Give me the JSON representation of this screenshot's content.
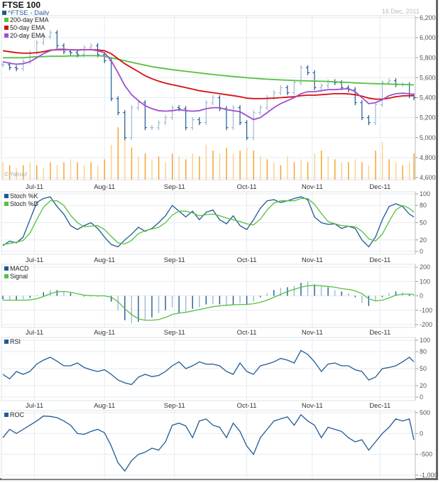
{
  "header": {
    "title": "FTSE 100",
    "subtitle": "^FTSE - Daily",
    "date": "16 Dec, 2011",
    "watermark": "© Yahoo!"
  },
  "colors": {
    "price_dark": "#1f5a96",
    "price_light": "#9fb9d4",
    "ema200": "#55c040",
    "ema50": "#d41010",
    "ema20": "#a050d0",
    "volume": "#f5a020",
    "volume_light": "#fbd08a",
    "line": "#1f5a96",
    "signal": "#55c040",
    "grid": "#e6ebf0"
  },
  "chart_data": {
    "type": "line",
    "xlim": [
      "2011-06-17",
      "2011-12-16"
    ],
    "month_ticks": [
      {
        "label": "Jul-11",
        "date": "2011-07-01"
      },
      {
        "label": "Aug-11",
        "date": "2011-08-01"
      },
      {
        "label": "Sep-11",
        "date": "2011-09-01"
      },
      {
        "label": "Oct-11",
        "date": "2011-10-03"
      },
      {
        "label": "Nov-11",
        "date": "2011-11-01"
      },
      {
        "label": "Dec-11",
        "date": "2011-12-01"
      }
    ],
    "dates": [
      "2011-06-17",
      "2011-06-20",
      "2011-06-23",
      "2011-06-26",
      "2011-06-29",
      "2011-07-02",
      "2011-07-05",
      "2011-07-08",
      "2011-07-11",
      "2011-07-14",
      "2011-07-17",
      "2011-07-20",
      "2011-07-23",
      "2011-07-26",
      "2011-07-29",
      "2011-08-01",
      "2011-08-04",
      "2011-08-07",
      "2011-08-10",
      "2011-08-13",
      "2011-08-16",
      "2011-08-19",
      "2011-08-22",
      "2011-08-25",
      "2011-08-28",
      "2011-08-31",
      "2011-09-03",
      "2011-09-06",
      "2011-09-09",
      "2011-09-12",
      "2011-09-15",
      "2011-09-18",
      "2011-09-21",
      "2011-09-24",
      "2011-09-27",
      "2011-09-30",
      "2011-10-03",
      "2011-10-06",
      "2011-10-09",
      "2011-10-12",
      "2011-10-15",
      "2011-10-18",
      "2011-10-21",
      "2011-10-24",
      "2011-10-27",
      "2011-10-30",
      "2011-11-02",
      "2011-11-05",
      "2011-11-08",
      "2011-11-11",
      "2011-11-14",
      "2011-11-17",
      "2011-11-20",
      "2011-11-23",
      "2011-11-26",
      "2011-11-29",
      "2011-12-02",
      "2011-12-05",
      "2011-12-08",
      "2011-12-11",
      "2011-12-14",
      "2011-12-16"
    ],
    "panels": {
      "price": {
        "type": "ohlc",
        "ylim": [
          4600,
          6200
        ],
        "ticks": [
          4600,
          4800,
          5000,
          5200,
          5400,
          5600,
          5800,
          6000,
          6200
        ],
        "tick_labels": [
          "4,600",
          "4,800",
          "5,000",
          "5,200",
          "5,400",
          "5,600",
          "5,800",
          "6,000",
          "6,200"
        ],
        "close": [
          5730,
          5700,
          5690,
          5760,
          5850,
          5950,
          6010,
          6050,
          5920,
          5860,
          5850,
          5830,
          5900,
          5920,
          5830,
          5770,
          5390,
          5250,
          5000,
          5300,
          5350,
          5100,
          5100,
          5150,
          5200,
          5300,
          5290,
          5100,
          5180,
          5150,
          5350,
          5400,
          5290,
          5100,
          5300,
          5150,
          5000,
          5250,
          5300,
          5400,
          5450,
          5500,
          5450,
          5550,
          5700,
          5650,
          5500,
          5520,
          5560,
          5550,
          5500,
          5480,
          5350,
          5200,
          5150,
          5330,
          5550,
          5570,
          5530,
          5530,
          5420,
          5400
        ],
        "volume_relative": [
          30,
          25,
          20,
          25,
          30,
          25,
          20,
          30,
          25,
          30,
          35,
          30,
          25,
          30,
          25,
          35,
          60,
          90,
          100,
          55,
          40,
          45,
          35,
          40,
          30,
          45,
          40,
          35,
          45,
          40,
          60,
          50,
          45,
          55,
          45,
          50,
          55,
          50,
          40,
          35,
          30,
          25,
          40,
          30,
          35,
          30,
          45,
          50,
          40,
          35,
          30,
          30,
          35,
          30,
          25,
          50,
          65,
          35,
          30,
          25,
          30,
          45
        ],
        "series": [
          {
            "name": "200-day EMA",
            "color_key": "ema200",
            "values": [
              5800,
              5800,
              5800,
              5800,
              5805,
              5810,
              5812,
              5815,
              5815,
              5815,
              5818,
              5818,
              5820,
              5820,
              5820,
              5815,
              5800,
              5785,
              5770,
              5755,
              5740,
              5725,
              5710,
              5700,
              5690,
              5680,
              5672,
              5664,
              5656,
              5648,
              5640,
              5632,
              5625,
              5618,
              5612,
              5606,
              5600,
              5595,
              5590,
              5585,
              5582,
              5578,
              5575,
              5572,
              5570,
              5568,
              5566,
              5564,
              5562,
              5558,
              5555,
              5552,
              5548,
              5545,
              5542,
              5540,
              5538,
              5536,
              5534,
              5532,
              5530,
              5528
            ]
          },
          {
            "name": "50-day EMA",
            "color_key": "ema50",
            "values": [
              5870,
              5860,
              5850,
              5845,
              5845,
              5850,
              5860,
              5875,
              5880,
              5880,
              5880,
              5878,
              5880,
              5880,
              5878,
              5870,
              5840,
              5790,
              5740,
              5700,
              5660,
              5620,
              5590,
              5565,
              5545,
              5530,
              5515,
              5500,
              5485,
              5470,
              5460,
              5450,
              5440,
              5430,
              5420,
              5410,
              5395,
              5390,
              5390,
              5392,
              5396,
              5400,
              5405,
              5410,
              5420,
              5425,
              5425,
              5430,
              5435,
              5440,
              5440,
              5438,
              5430,
              5415,
              5395,
              5385,
              5385,
              5395,
              5410,
              5418,
              5420,
              5420
            ]
          },
          {
            "name": "20-day EMA",
            "color_key": "ema20",
            "values": [
              5760,
              5745,
              5735,
              5740,
              5760,
              5800,
              5840,
              5870,
              5885,
              5885,
              5880,
              5875,
              5880,
              5880,
              5870,
              5850,
              5770,
              5650,
              5520,
              5430,
              5370,
              5320,
              5290,
              5270,
              5265,
              5270,
              5280,
              5270,
              5265,
              5270,
              5290,
              5300,
              5300,
              5280,
              5270,
              5260,
              5220,
              5180,
              5200,
              5250,
              5300,
              5340,
              5370,
              5400,
              5440,
              5460,
              5460,
              5470,
              5480,
              5480,
              5485,
              5490,
              5460,
              5400,
              5340,
              5350,
              5380,
              5420,
              5440,
              5445,
              5440,
              5430
            ]
          }
        ]
      },
      "stoch": {
        "ylim": [
          0,
          100
        ],
        "ticks": [
          0,
          20,
          50,
          80,
          100
        ],
        "tick_labels": [
          "0",
          "20",
          "50",
          "80",
          "100"
        ],
        "series": [
          {
            "name": "Stoch %K",
            "color_key": "line",
            "values": [
              10,
              18,
              15,
              25,
              55,
              85,
              92,
              95,
              78,
              65,
              45,
              38,
              45,
              50,
              40,
              25,
              12,
              8,
              20,
              30,
              42,
              35,
              40,
              50,
              62,
              80,
              70,
              60,
              70,
              55,
              68,
              72,
              55,
              48,
              62,
              45,
              38,
              55,
              75,
              88,
              90,
              85,
              88,
              92,
              95,
              90,
              60,
              50,
              47,
              48,
              40,
              44,
              40,
              20,
              8,
              25,
              55,
              78,
              83,
              78,
              65,
              60
            ]
          },
          {
            "name": "Stoch %D",
            "color_key": "signal",
            "values": [
              12,
              14,
              16,
              19,
              32,
              55,
              77,
              88,
              88,
              80,
              63,
              50,
              43,
              44,
              45,
              38,
              26,
              15,
              13,
              19,
              31,
              36,
              39,
              42,
              50,
              63,
              70,
              70,
              67,
              62,
              64,
              65,
              62,
              58,
              55,
              52,
              48,
              46,
              56,
              72,
              84,
              88,
              88,
              88,
              92,
              92,
              82,
              66,
              52,
              48,
              45,
              44,
              43,
              35,
              22,
              18,
              30,
              52,
              72,
              80,
              75,
              68
            ]
          }
        ]
      },
      "macd": {
        "ylim": [
          -200,
          200
        ],
        "ticks": [
          -200,
          -100,
          0,
          100,
          200
        ],
        "tick_labels": [
          "-200",
          "-100",
          "0",
          "100",
          "200"
        ],
        "histogram": {
          "name": "MACD",
          "color_key": "line",
          "values": [
            -25,
            -30,
            -30,
            -25,
            -15,
            5,
            25,
            40,
            40,
            30,
            20,
            0,
            -5,
            -5,
            -5,
            0,
            -40,
            -100,
            -170,
            -190,
            -180,
            -170,
            -150,
            -120,
            -100,
            -80,
            -120,
            -110,
            -90,
            -80,
            -60,
            -60,
            -60,
            -70,
            -60,
            -50,
            -60,
            -40,
            -10,
            20,
            40,
            55,
            60,
            70,
            90,
            100,
            80,
            70,
            60,
            40,
            30,
            20,
            -10,
            -50,
            -70,
            -40,
            -10,
            20,
            30,
            25,
            15,
            10
          ]
        },
        "series": [
          {
            "name": "Signal",
            "color_key": "signal",
            "values": [
              -30,
              -30,
              -30,
              -30,
              -28,
              -20,
              -5,
              15,
              28,
              30,
              25,
              15,
              5,
              2,
              0,
              0,
              -10,
              -40,
              -90,
              -130,
              -160,
              -170,
              -170,
              -165,
              -150,
              -130,
              -120,
              -115,
              -105,
              -95,
              -85,
              -75,
              -70,
              -65,
              -62,
              -60,
              -60,
              -55,
              -45,
              -30,
              -10,
              10,
              30,
              45,
              60,
              70,
              72,
              70,
              65,
              60,
              50,
              45,
              35,
              15,
              -20,
              -35,
              -30,
              -15,
              5,
              12,
              12,
              10
            ]
          }
        ]
      },
      "rsi": {
        "ylim": [
          0,
          100
        ],
        "ticks": [
          0,
          20,
          50,
          80,
          100
        ],
        "tick_labels": [
          "0",
          "20",
          "50",
          "80",
          "100"
        ],
        "series": [
          {
            "name": "RSI",
            "color_key": "line",
            "values": [
              40,
              32,
              45,
              40,
              45,
              58,
              65,
              70,
              63,
              55,
              55,
              60,
              52,
              48,
              45,
              48,
              40,
              30,
              25,
              22,
              35,
              40,
              36,
              38,
              45,
              55,
              62,
              50,
              55,
              62,
              58,
              58,
              55,
              45,
              40,
              60,
              45,
              40,
              55,
              58,
              62,
              68,
              65,
              60,
              82,
              75,
              62,
              45,
              58,
              60,
              55,
              55,
              48,
              45,
              30,
              35,
              50,
              52,
              55,
              62,
              70,
              62
            ]
          }
        ]
      },
      "roc": {
        "ylim": [
          -1000,
          500
        ],
        "ticks": [
          -1000,
          -500,
          0,
          500
        ],
        "tick_labels": [
          "-1,000",
          "-500",
          "0",
          "500"
        ],
        "series": [
          {
            "name": "ROC",
            "color_key": "line",
            "values": [
              -100,
              100,
              0,
              100,
              200,
              300,
              420,
              410,
              380,
              300,
              200,
              0,
              -20,
              50,
              100,
              20,
              -300,
              -700,
              -900,
              -650,
              -500,
              -450,
              -350,
              -400,
              -200,
              200,
              250,
              180,
              -100,
              300,
              350,
              200,
              150,
              -100,
              250,
              50,
              -300,
              -500,
              -100,
              100,
              300,
              350,
              400,
              200,
              450,
              300,
              200,
              -100,
              150,
              100,
              50,
              -100,
              -200,
              -150,
              -400,
              -200,
              0,
              150,
              350,
              300,
              350,
              -150
            ]
          }
        ]
      }
    }
  }
}
